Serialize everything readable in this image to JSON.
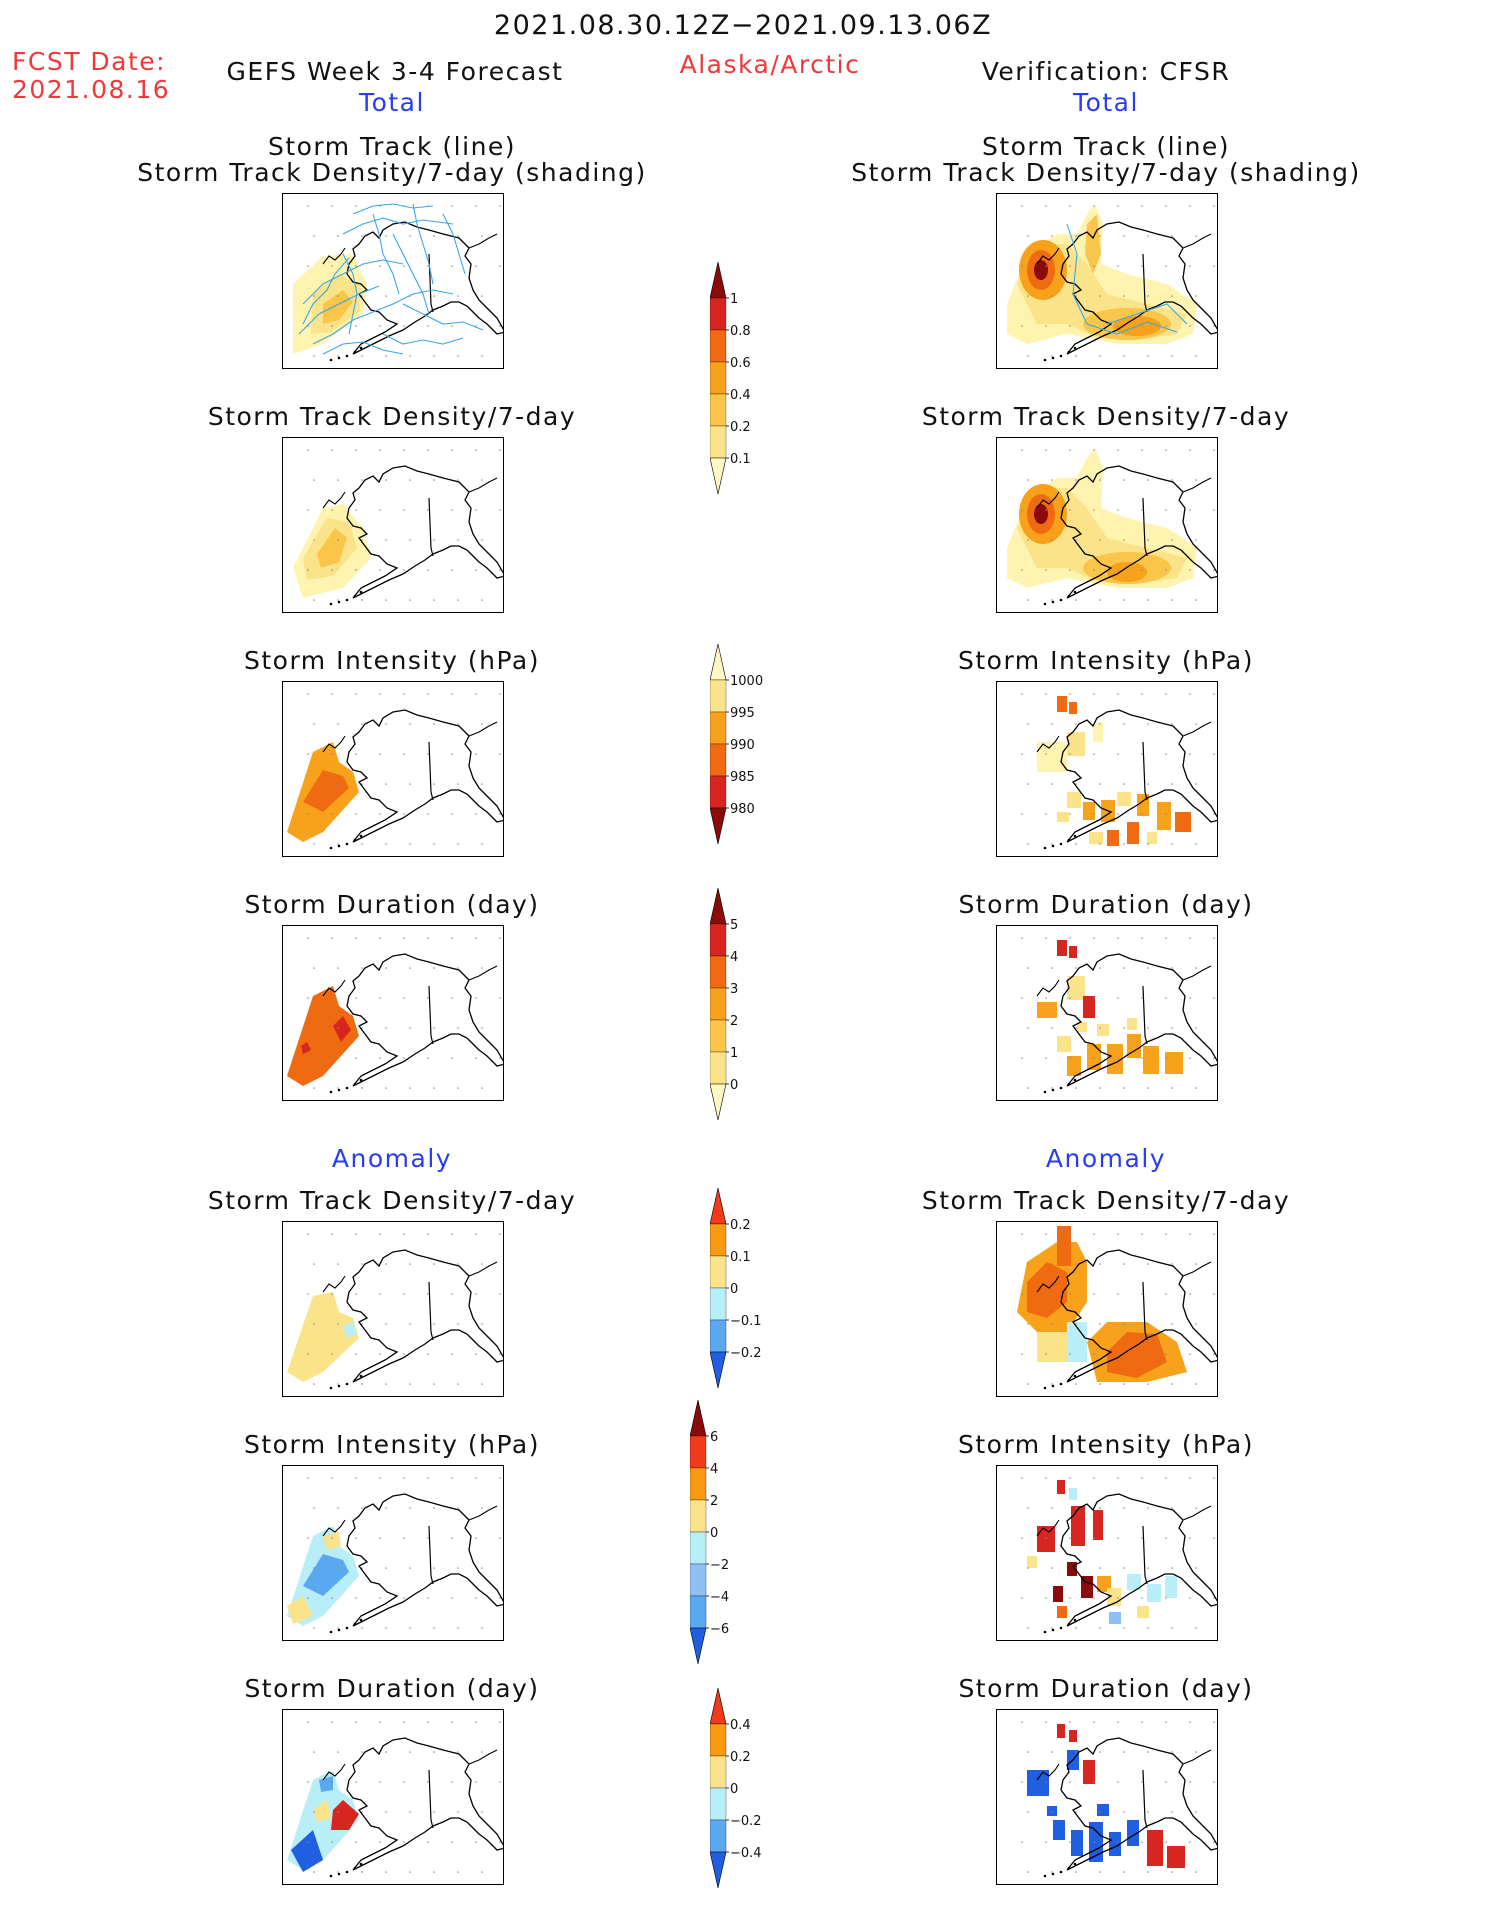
{
  "header": {
    "period": "2021.08.30.12Z−2021.09.13.06Z",
    "fcst_label": "FCST Date:",
    "fcst_date": "2021.08.16",
    "forecast_title": "GEFS Week 3-4 Forecast",
    "region": "Alaska/Arctic",
    "verification": "Verification: CFSR",
    "left_total": "Total",
    "right_total": "Total",
    "left_anomaly": "Anomaly",
    "right_anomaly": "Anomaly"
  },
  "titles": {
    "track_line": "Storm Track (line)",
    "track_density_shading": "Storm Track Density/7-day (shading)",
    "track_density": "Storm Track Density/7-day",
    "intensity": "Storm Intensity (hPa)",
    "duration": "Storm Duration (day)"
  },
  "colorbars": {
    "density_total": {
      "labels": [
        "1",
        "0.8",
        "0.6",
        "0.4",
        "0.2",
        "0.1"
      ],
      "colors": [
        "#8b0a0a",
        "#d7251f",
        "#f06a12",
        "#f7a21a",
        "#f9c64a",
        "#fbe38a",
        "#fff8c2"
      ]
    },
    "intensity_total": {
      "labels": [
        "1000",
        "995",
        "990",
        "985",
        "980"
      ],
      "colors": [
        "#fff8c2",
        "#fbe38a",
        "#f7a21a",
        "#f06a12",
        "#d7251f",
        "#8b0a0a"
      ]
    },
    "duration_total": {
      "labels": [
        "5",
        "4",
        "3",
        "2",
        "1",
        "0"
      ],
      "colors": [
        "#8b0a0a",
        "#d7251f",
        "#f06a12",
        "#f7a21a",
        "#f9c64a",
        "#fbe38a",
        "#fff8c2"
      ]
    },
    "density_anom": {
      "labels": [
        "0.2",
        "0.1",
        "0",
        "−0.1",
        "−0.2"
      ],
      "colors": [
        "#f03a1a",
        "#f79a12",
        "#fbe38a",
        "#b7eef7",
        "#5aa8f0",
        "#1f5fe0"
      ]
    },
    "intensity_anom": {
      "labels": [
        "6",
        "4",
        "2",
        "0",
        "−2",
        "−4",
        "−6"
      ],
      "colors": [
        "#8b0a0a",
        "#f03a1a",
        "#f79a12",
        "#fbe38a",
        "#b7eef7",
        "#8ec0f5",
        "#5aa8f0",
        "#1f5fe0"
      ]
    },
    "duration_anom": {
      "labels": [
        "0.4",
        "0.2",
        "0",
        "−0.2",
        "−0.4"
      ],
      "colors": [
        "#f03a1a",
        "#f79a12",
        "#fbe38a",
        "#b7eef7",
        "#5aa8f0",
        "#1f5fe0"
      ]
    }
  },
  "map_colors": {
    "pale": "#fff3b0",
    "light": "#fbe38a",
    "mid": "#f9c64a",
    "orange": "#f7a21a",
    "deep": "#f06a12",
    "red": "#d7251f",
    "dark": "#8b0a0a",
    "track": "#3aa7e6",
    "lightblue": "#b7eef7",
    "medblue": "#8ec0f5",
    "blue": "#5aa8f0",
    "darkblue": "#1f5fe0"
  }
}
